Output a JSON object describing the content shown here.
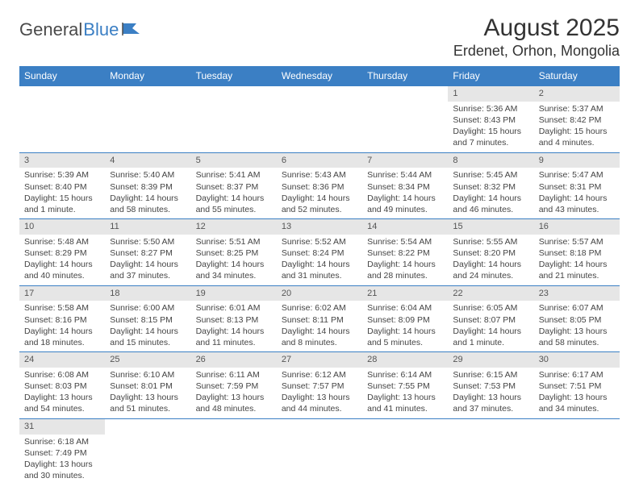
{
  "logo": {
    "text_general": "General",
    "text_blue": "Blue"
  },
  "title": "August 2025",
  "location": "Erdenet, Orhon, Mongolia",
  "colors": {
    "header_bg": "#3b7fc4",
    "header_text": "#ffffff",
    "daynum_bg": "#e6e6e6",
    "border": "#3b7fc4",
    "text": "#444444"
  },
  "day_headers": [
    "Sunday",
    "Monday",
    "Tuesday",
    "Wednesday",
    "Thursday",
    "Friday",
    "Saturday"
  ],
  "weeks": [
    [
      {
        "n": "",
        "sunrise": "",
        "sunset": "",
        "daylight": ""
      },
      {
        "n": "",
        "sunrise": "",
        "sunset": "",
        "daylight": ""
      },
      {
        "n": "",
        "sunrise": "",
        "sunset": "",
        "daylight": ""
      },
      {
        "n": "",
        "sunrise": "",
        "sunset": "",
        "daylight": ""
      },
      {
        "n": "",
        "sunrise": "",
        "sunset": "",
        "daylight": ""
      },
      {
        "n": "1",
        "sunrise": "Sunrise: 5:36 AM",
        "sunset": "Sunset: 8:43 PM",
        "daylight": "Daylight: 15 hours and 7 minutes."
      },
      {
        "n": "2",
        "sunrise": "Sunrise: 5:37 AM",
        "sunset": "Sunset: 8:42 PM",
        "daylight": "Daylight: 15 hours and 4 minutes."
      }
    ],
    [
      {
        "n": "3",
        "sunrise": "Sunrise: 5:39 AM",
        "sunset": "Sunset: 8:40 PM",
        "daylight": "Daylight: 15 hours and 1 minute."
      },
      {
        "n": "4",
        "sunrise": "Sunrise: 5:40 AM",
        "sunset": "Sunset: 8:39 PM",
        "daylight": "Daylight: 14 hours and 58 minutes."
      },
      {
        "n": "5",
        "sunrise": "Sunrise: 5:41 AM",
        "sunset": "Sunset: 8:37 PM",
        "daylight": "Daylight: 14 hours and 55 minutes."
      },
      {
        "n": "6",
        "sunrise": "Sunrise: 5:43 AM",
        "sunset": "Sunset: 8:36 PM",
        "daylight": "Daylight: 14 hours and 52 minutes."
      },
      {
        "n": "7",
        "sunrise": "Sunrise: 5:44 AM",
        "sunset": "Sunset: 8:34 PM",
        "daylight": "Daylight: 14 hours and 49 minutes."
      },
      {
        "n": "8",
        "sunrise": "Sunrise: 5:45 AM",
        "sunset": "Sunset: 8:32 PM",
        "daylight": "Daylight: 14 hours and 46 minutes."
      },
      {
        "n": "9",
        "sunrise": "Sunrise: 5:47 AM",
        "sunset": "Sunset: 8:31 PM",
        "daylight": "Daylight: 14 hours and 43 minutes."
      }
    ],
    [
      {
        "n": "10",
        "sunrise": "Sunrise: 5:48 AM",
        "sunset": "Sunset: 8:29 PM",
        "daylight": "Daylight: 14 hours and 40 minutes."
      },
      {
        "n": "11",
        "sunrise": "Sunrise: 5:50 AM",
        "sunset": "Sunset: 8:27 PM",
        "daylight": "Daylight: 14 hours and 37 minutes."
      },
      {
        "n": "12",
        "sunrise": "Sunrise: 5:51 AM",
        "sunset": "Sunset: 8:25 PM",
        "daylight": "Daylight: 14 hours and 34 minutes."
      },
      {
        "n": "13",
        "sunrise": "Sunrise: 5:52 AM",
        "sunset": "Sunset: 8:24 PM",
        "daylight": "Daylight: 14 hours and 31 minutes."
      },
      {
        "n": "14",
        "sunrise": "Sunrise: 5:54 AM",
        "sunset": "Sunset: 8:22 PM",
        "daylight": "Daylight: 14 hours and 28 minutes."
      },
      {
        "n": "15",
        "sunrise": "Sunrise: 5:55 AM",
        "sunset": "Sunset: 8:20 PM",
        "daylight": "Daylight: 14 hours and 24 minutes."
      },
      {
        "n": "16",
        "sunrise": "Sunrise: 5:57 AM",
        "sunset": "Sunset: 8:18 PM",
        "daylight": "Daylight: 14 hours and 21 minutes."
      }
    ],
    [
      {
        "n": "17",
        "sunrise": "Sunrise: 5:58 AM",
        "sunset": "Sunset: 8:16 PM",
        "daylight": "Daylight: 14 hours and 18 minutes."
      },
      {
        "n": "18",
        "sunrise": "Sunrise: 6:00 AM",
        "sunset": "Sunset: 8:15 PM",
        "daylight": "Daylight: 14 hours and 15 minutes."
      },
      {
        "n": "19",
        "sunrise": "Sunrise: 6:01 AM",
        "sunset": "Sunset: 8:13 PM",
        "daylight": "Daylight: 14 hours and 11 minutes."
      },
      {
        "n": "20",
        "sunrise": "Sunrise: 6:02 AM",
        "sunset": "Sunset: 8:11 PM",
        "daylight": "Daylight: 14 hours and 8 minutes."
      },
      {
        "n": "21",
        "sunrise": "Sunrise: 6:04 AM",
        "sunset": "Sunset: 8:09 PM",
        "daylight": "Daylight: 14 hours and 5 minutes."
      },
      {
        "n": "22",
        "sunrise": "Sunrise: 6:05 AM",
        "sunset": "Sunset: 8:07 PM",
        "daylight": "Daylight: 14 hours and 1 minute."
      },
      {
        "n": "23",
        "sunrise": "Sunrise: 6:07 AM",
        "sunset": "Sunset: 8:05 PM",
        "daylight": "Daylight: 13 hours and 58 minutes."
      }
    ],
    [
      {
        "n": "24",
        "sunrise": "Sunrise: 6:08 AM",
        "sunset": "Sunset: 8:03 PM",
        "daylight": "Daylight: 13 hours and 54 minutes."
      },
      {
        "n": "25",
        "sunrise": "Sunrise: 6:10 AM",
        "sunset": "Sunset: 8:01 PM",
        "daylight": "Daylight: 13 hours and 51 minutes."
      },
      {
        "n": "26",
        "sunrise": "Sunrise: 6:11 AM",
        "sunset": "Sunset: 7:59 PM",
        "daylight": "Daylight: 13 hours and 48 minutes."
      },
      {
        "n": "27",
        "sunrise": "Sunrise: 6:12 AM",
        "sunset": "Sunset: 7:57 PM",
        "daylight": "Daylight: 13 hours and 44 minutes."
      },
      {
        "n": "28",
        "sunrise": "Sunrise: 6:14 AM",
        "sunset": "Sunset: 7:55 PM",
        "daylight": "Daylight: 13 hours and 41 minutes."
      },
      {
        "n": "29",
        "sunrise": "Sunrise: 6:15 AM",
        "sunset": "Sunset: 7:53 PM",
        "daylight": "Daylight: 13 hours and 37 minutes."
      },
      {
        "n": "30",
        "sunrise": "Sunrise: 6:17 AM",
        "sunset": "Sunset: 7:51 PM",
        "daylight": "Daylight: 13 hours and 34 minutes."
      }
    ],
    [
      {
        "n": "31",
        "sunrise": "Sunrise: 6:18 AM",
        "sunset": "Sunset: 7:49 PM",
        "daylight": "Daylight: 13 hours and 30 minutes."
      },
      {
        "n": "",
        "sunrise": "",
        "sunset": "",
        "daylight": ""
      },
      {
        "n": "",
        "sunrise": "",
        "sunset": "",
        "daylight": ""
      },
      {
        "n": "",
        "sunrise": "",
        "sunset": "",
        "daylight": ""
      },
      {
        "n": "",
        "sunrise": "",
        "sunset": "",
        "daylight": ""
      },
      {
        "n": "",
        "sunrise": "",
        "sunset": "",
        "daylight": ""
      },
      {
        "n": "",
        "sunrise": "",
        "sunset": "",
        "daylight": ""
      }
    ]
  ]
}
